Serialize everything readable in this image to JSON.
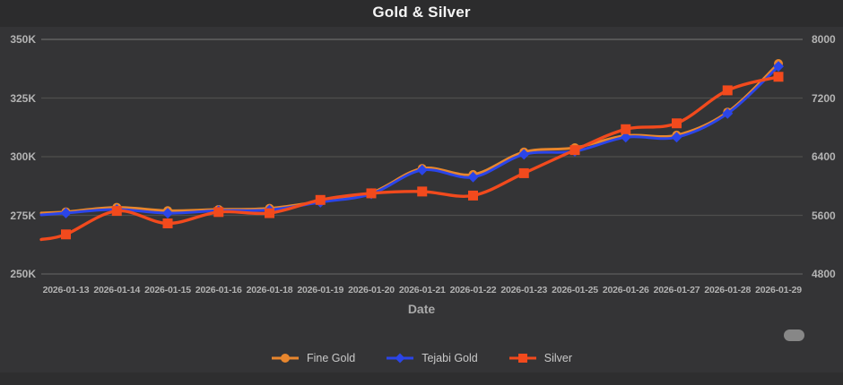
{
  "title": "Gold & Silver",
  "colors": {
    "background": "#343436",
    "grid": "#4e4e4e",
    "grid_top": "#6a6a6a",
    "grid_bottom": "#5e5e5e",
    "axis_text": "#b4b4b4",
    "fine_gold": "#E8862D",
    "tejabi_gold": "#2B45E8",
    "silver": "#F24A1D",
    "scrollbar": "#878787"
  },
  "chart_data": {
    "type": "line",
    "title": "Gold & Silver",
    "xlabel": "Date",
    "grid": true,
    "legend_position": "bottom",
    "categories": [
      "2026-01-13",
      "2026-01-14",
      "2026-01-15",
      "2026-01-16",
      "2026-01-18",
      "2026-01-19",
      "2026-01-20",
      "2026-01-21",
      "2026-01-22",
      "2026-01-23",
      "2026-01-25",
      "2026-01-26",
      "2026-01-27",
      "2026-01-28",
      "2026-01-29"
    ],
    "left_axis": {
      "min": 250000,
      "max": 350000,
      "tick_labels": [
        "350K",
        "325K",
        "300K",
        "275K",
        "250K"
      ]
    },
    "right_axis": {
      "min": 4800,
      "max": 8000,
      "tick_labels": [
        "8000",
        "7200",
        "6400",
        "5600",
        "4800"
      ]
    },
    "series": [
      {
        "name": "Fine Gold",
        "axis": "left",
        "marker": "circle",
        "color": "#E8862D",
        "values": [
          276500,
          278400,
          277000,
          277500,
          278000,
          281000,
          284600,
          295000,
          292400,
          302000,
          303800,
          309000,
          309200,
          319000,
          339700
        ]
      },
      {
        "name": "Tejabi Gold",
        "axis": "left",
        "marker": "diamond",
        "color": "#2B45E8",
        "values": [
          276000,
          277500,
          275900,
          277000,
          277300,
          280600,
          284100,
          294300,
          291300,
          301000,
          302300,
          308300,
          308300,
          318400,
          338500
        ]
      },
      {
        "name": "Silver",
        "axis": "right",
        "marker": "square",
        "color": "#F24A1D",
        "values": [
          5340,
          5660,
          5490,
          5645,
          5630,
          5810,
          5900,
          5925,
          5870,
          6175,
          6490,
          6775,
          6855,
          7305,
          7490
        ]
      }
    ],
    "edge_continuation": {
      "Fine Gold": 276000,
      "Tejabi Gold": 275200,
      "Silver": 5270
    }
  },
  "x_axis_title": "Date"
}
